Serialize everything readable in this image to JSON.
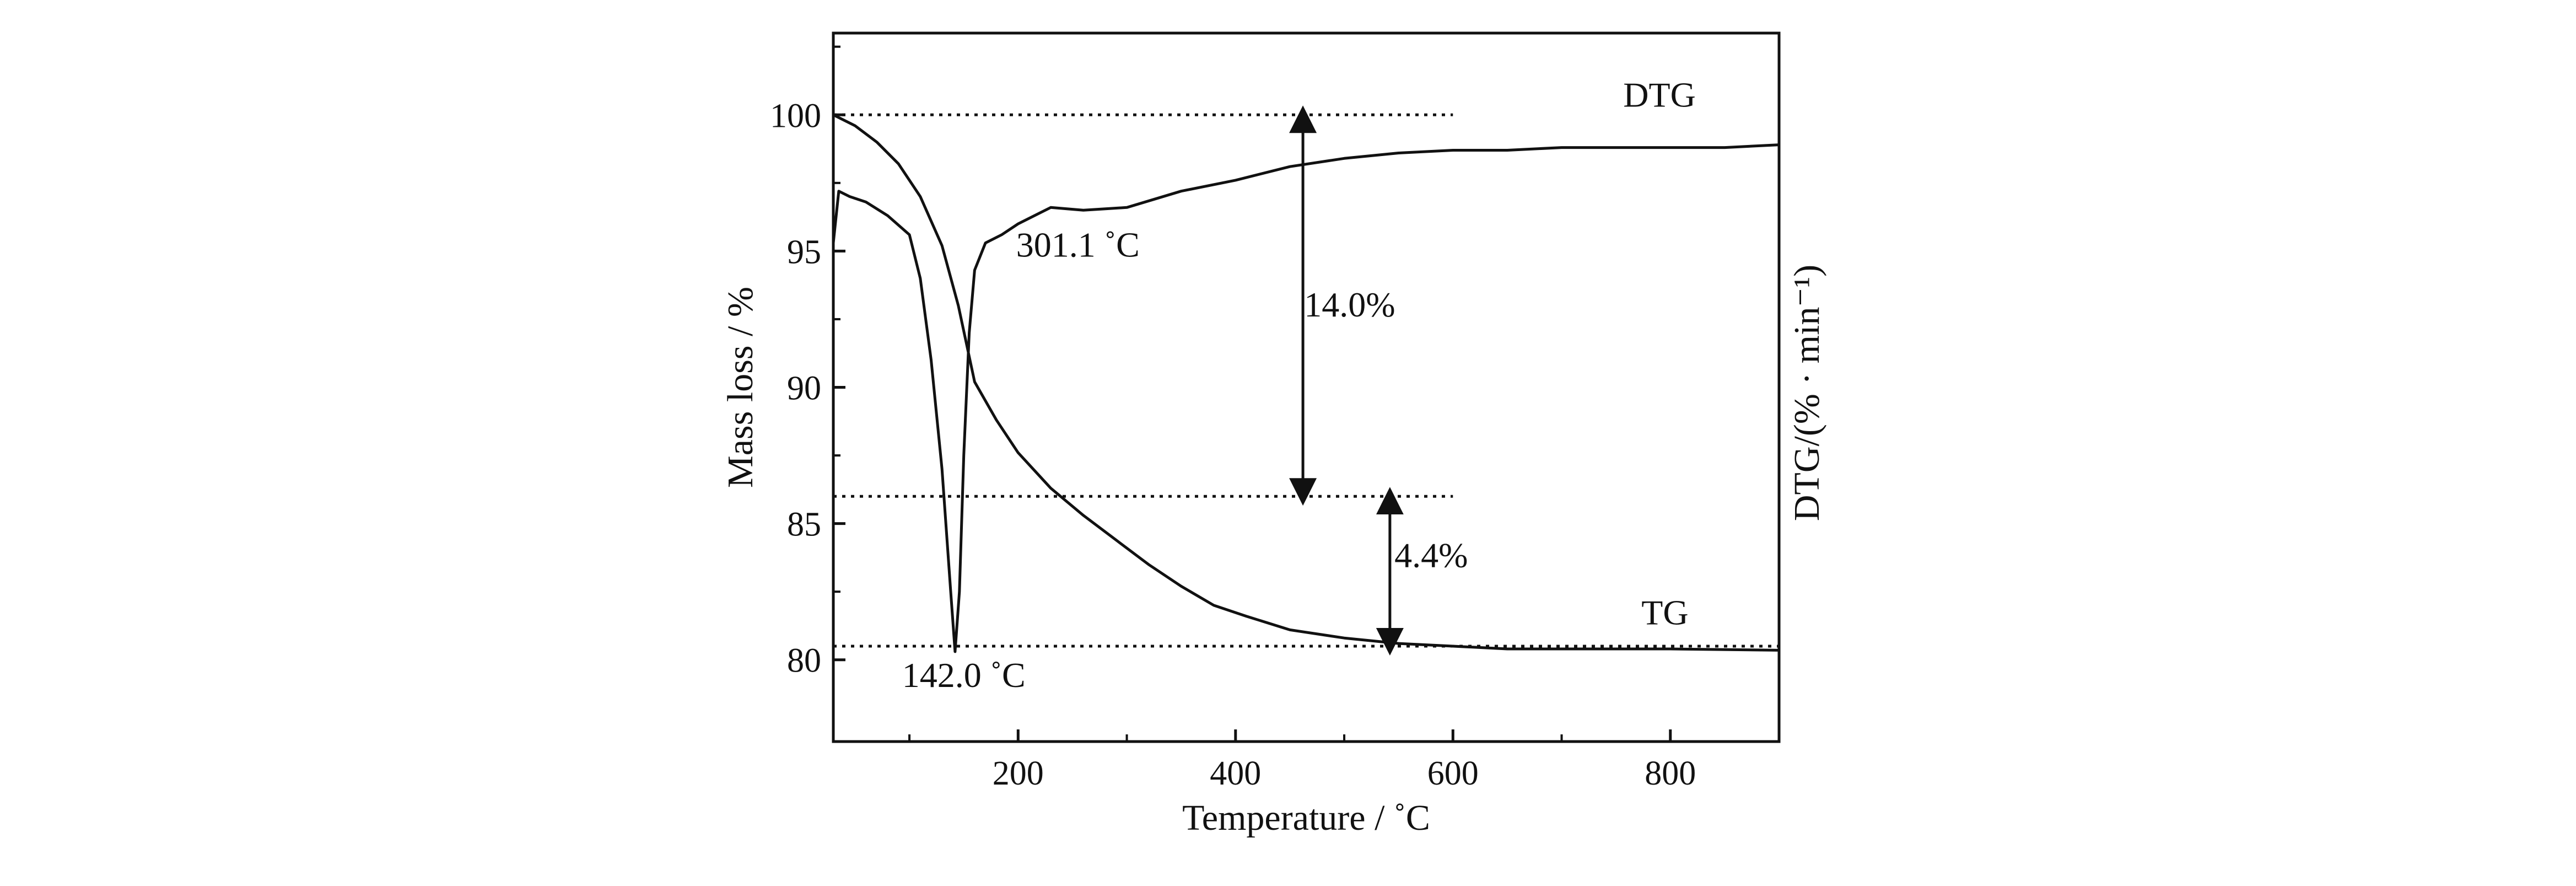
{
  "chart_data": {
    "type": "line",
    "xlabel": "Temperature / ˚C",
    "ylabel_left": "Mass loss / %",
    "ylabel_right": "DTG/(% · min⁻¹)",
    "xlim": [
      30,
      900
    ],
    "ylim": [
      77,
      103
    ],
    "x_ticks": [
      200,
      400,
      600,
      800
    ],
    "y_ticks": [
      80,
      85,
      90,
      95,
      100
    ],
    "grid": false,
    "series": [
      {
        "name": "TG",
        "x": [
          30,
          50,
          70,
          90,
          110,
          130,
          145,
          160,
          180,
          200,
          230,
          260,
          290,
          320,
          350,
          380,
          410,
          450,
          500,
          550,
          600,
          650,
          700,
          800,
          900
        ],
        "y": [
          100,
          99.6,
          99.0,
          98.2,
          97.0,
          95.2,
          93.0,
          90.2,
          88.8,
          87.6,
          86.3,
          85.3,
          84.4,
          83.5,
          82.7,
          82.0,
          81.6,
          81.1,
          80.8,
          80.6,
          80.5,
          80.4,
          80.4,
          80.4,
          80.35
        ]
      },
      {
        "name": "DTG",
        "x": [
          30,
          35,
          45,
          60,
          80,
          100,
          110,
          120,
          130,
          138,
          142,
          146,
          150,
          155,
          160,
          170,
          185,
          200,
          230,
          260,
          300,
          350,
          400,
          450,
          500,
          550,
          600,
          650,
          700,
          750,
          800,
          850,
          900
        ],
        "y": [
          95.3,
          97.2,
          97.0,
          96.8,
          96.3,
          95.6,
          94.0,
          91.0,
          87.0,
          82.5,
          80.3,
          82.5,
          87.5,
          92.0,
          94.3,
          95.3,
          95.6,
          96.0,
          96.6,
          96.5,
          96.6,
          97.2,
          97.6,
          98.1,
          98.4,
          98.6,
          98.7,
          98.7,
          98.8,
          98.8,
          98.8,
          98.8,
          98.9
        ]
      }
    ],
    "annotations": [
      {
        "text": "DTG",
        "x": 790,
        "y": 100.3
      },
      {
        "text": "TG",
        "x": 795,
        "y": 81.3
      },
      {
        "text": "301.1 ˚C",
        "x": 255,
        "y": 94.8
      },
      {
        "text": "142.0 ˚C",
        "x": 150,
        "y": 79.0
      },
      {
        "text": "14.0%",
        "x": 505,
        "y": 92.6
      },
      {
        "text": "4.4%",
        "x": 580,
        "y": 83.4
      }
    ],
    "reference_lines": [
      {
        "y": 100.0,
        "x_from": 30,
        "x_to": 600
      },
      {
        "y": 86.0,
        "x_from": 30,
        "x_to": 600
      },
      {
        "y": 80.5,
        "x_from": 30,
        "x_to": 900
      }
    ],
    "arrows": [
      {
        "x": 462,
        "y_from": 100.0,
        "y_to": 86.0
      },
      {
        "x": 542,
        "y_from": 86.0,
        "y_to": 80.5
      }
    ]
  }
}
